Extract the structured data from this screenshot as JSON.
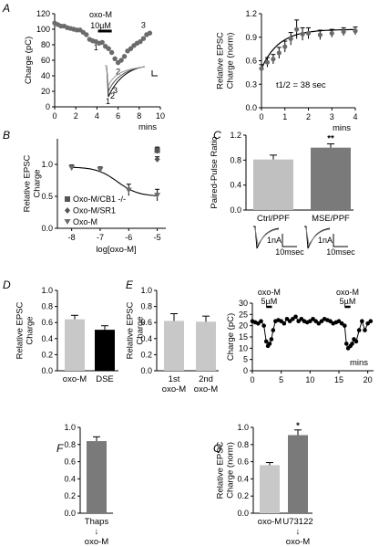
{
  "chart_data": [
    {
      "panel": "A",
      "type": "scatter",
      "ylabel": "Charge (pC)",
      "xlabel": "mins",
      "xlim": [
        0,
        10
      ],
      "ylim": [
        0,
        120
      ],
      "xticks": [
        "0",
        "2",
        "4",
        "6",
        "8",
        "10"
      ],
      "yticks": [
        "0",
        "20",
        "40",
        "60",
        "80",
        "100",
        "120"
      ],
      "drug_bar": {
        "label1": "oxo-M",
        "label2": "10µM",
        "x": [
          4.1,
          5.4
        ]
      },
      "markers": [
        "1",
        "2",
        "3"
      ],
      "trace_labels": [
        "1",
        "2",
        "3"
      ],
      "x": [
        0,
        0.3,
        0.6,
        0.9,
        1.2,
        1.5,
        1.8,
        2.1,
        2.4,
        2.7,
        3.0,
        3.3,
        3.6,
        3.9,
        4.2,
        4.5,
        4.8,
        5.1,
        5.4,
        5.7,
        6.0,
        6.3,
        6.6,
        6.9,
        7.2,
        7.5,
        7.8,
        8.1,
        8.4,
        8.7,
        9.0
      ],
      "y": [
        108,
        106,
        104,
        104,
        102,
        101,
        100,
        99,
        99,
        96,
        93,
        87,
        85,
        84,
        82,
        83,
        78,
        75,
        70,
        62,
        57,
        60,
        65,
        72,
        75,
        79,
        82,
        84,
        88,
        93,
        95
      ]
    },
    {
      "panel": "A-right",
      "type": "line",
      "ylabel": "Relative EPSC Charge (norm)",
      "xlabel": "mins",
      "xlim": [
        0,
        4
      ],
      "ylim": [
        0.0,
        1.2
      ],
      "xticks": [
        "0",
        "1",
        "2",
        "3",
        "4"
      ],
      "yticks": [
        "0.0",
        "0.3",
        "0.6",
        "0.9",
        "1.2"
      ],
      "x": [
        0,
        0.25,
        0.5,
        0.75,
        1.0,
        1.25,
        1.5,
        1.75,
        2.0,
        2.5,
        3.0,
        3.5,
        4.0
      ],
      "y": [
        0.5,
        0.58,
        0.62,
        0.7,
        0.78,
        0.88,
        1.0,
        0.94,
        0.95,
        0.93,
        0.95,
        0.97,
        0.98
      ],
      "err": [
        0.05,
        0.06,
        0.06,
        0.07,
        0.07,
        0.08,
        0.12,
        0.08,
        0.07,
        0.06,
        0.05,
        0.05,
        0.05
      ],
      "annotation": "t1/2 = 38 sec"
    },
    {
      "panel": "B",
      "type": "scatter",
      "ylabel": "Relative EPSC Charge",
      "xlabel": "log[oxo-M]",
      "xlim": [
        -8.5,
        -4.7
      ],
      "ylim": [
        0,
        1.4
      ],
      "xticks": [
        "-8",
        "-7",
        "-6",
        "-5"
      ],
      "yticks": [
        "0.0",
        "0.5",
        "1.0"
      ],
      "legend": [
        "Oxo-M/CB1 -/-",
        "Oxo-M/SR1",
        "Oxo-M"
      ],
      "x": [
        -8,
        -7,
        -6,
        -5
      ],
      "y": [
        0.95,
        0.92,
        0.6,
        0.52
      ],
      "err": [
        0.04,
        0.04,
        0.09,
        0.09
      ],
      "cb1": {
        "x": -5,
        "y": 1.22,
        "err": 0.05
      },
      "sr1": {
        "x": -5,
        "y": 1.08,
        "err": 0.04
      }
    },
    {
      "panel": "C",
      "type": "bar",
      "ylabel": "Paired-Pulse Ratio",
      "ylim": [
        0,
        1.2
      ],
      "yticks": [
        "0.0",
        "0.4",
        "0.8",
        "1.2"
      ],
      "categories": [
        "Ctrl/PPF",
        "MSE/PPF"
      ],
      "values": [
        0.81,
        1.0
      ],
      "err": [
        0.07,
        0.06
      ],
      "colors": [
        "#c0c0c0",
        "#7a7a7a"
      ],
      "significance": "**",
      "scales": [
        {
          "amp": "1nA",
          "time": "10msec"
        },
        {
          "amp": "1nA",
          "time": "10msec"
        }
      ]
    },
    {
      "panel": "D",
      "type": "bar",
      "ylabel": "Relative EPSC Charge",
      "ylim": [
        0,
        1.0
      ],
      "yticks": [
        "0.0",
        "0.2",
        "0.4",
        "0.6",
        "0.8",
        "1.0"
      ],
      "categories": [
        "oxo-M",
        "DSE"
      ],
      "values": [
        0.64,
        0.51
      ],
      "err": [
        0.05,
        0.05
      ],
      "colors": [
        "#c8c8c8",
        "#000000"
      ]
    },
    {
      "panel": "E",
      "type": "bar",
      "ylabel": "Relative EPSC Charge",
      "ylim": [
        0,
        1.0
      ],
      "yticks": [
        "0.0",
        "0.2",
        "0.4",
        "0.6",
        "0.8",
        "1.0"
      ],
      "categories": [
        [
          "1st",
          "oxo-M"
        ],
        [
          "2nd",
          "oxo-M"
        ]
      ],
      "values": [
        0.62,
        0.61
      ],
      "err": [
        0.09,
        0.07
      ],
      "colors": [
        "#c8c8c8",
        "#c8c8c8"
      ]
    },
    {
      "panel": "E-right",
      "type": "line",
      "ylabel": "Charge (pC)",
      "xlabel": "mins",
      "xlim": [
        0,
        21
      ],
      "ylim": [
        0,
        30
      ],
      "xticks": [
        "0",
        "5",
        "10",
        "15",
        "20"
      ],
      "yticks": [
        "0",
        "5",
        "10",
        "15",
        "20",
        "25",
        "30"
      ],
      "drug_bars": [
        {
          "label1": "oxo-M",
          "label2": "5µM",
          "x": [
            2.4,
            3.4
          ]
        },
        {
          "label1": "oxo-M",
          "label2": "5µM",
          "x": [
            16.0,
            17.0
          ]
        }
      ],
      "x": [
        0,
        0.5,
        1.0,
        1.5,
        2.0,
        2.4,
        2.7,
        3.0,
        3.3,
        3.6,
        4.0,
        4.5,
        5.0,
        5.5,
        6.0,
        6.5,
        7.0,
        7.5,
        8.0,
        8.5,
        9.0,
        9.5,
        10.0,
        10.5,
        11.0,
        11.5,
        12.0,
        12.5,
        13.0,
        13.5,
        14.0,
        14.5,
        15.0,
        15.5,
        16.0,
        16.3,
        16.6,
        17.0,
        17.3,
        17.6,
        18.0,
        18.5,
        19.0,
        19.5,
        20.0,
        20.5
      ],
      "y": [
        22,
        21.5,
        21,
        22,
        20,
        13,
        11,
        12,
        14,
        18,
        22,
        22.5,
        22,
        21,
        23,
        22,
        23,
        24,
        22,
        23,
        22,
        21.5,
        22,
        23,
        22,
        21,
        22,
        23,
        22.5,
        22,
        21,
        21.5,
        22,
        21,
        20,
        12,
        10,
        11,
        12,
        14,
        13,
        18,
        22,
        18,
        21,
        22
      ]
    },
    {
      "panel": "F",
      "type": "bar",
      "ylim": [
        0,
        1.0
      ],
      "yticks": [
        "0.0",
        "0.2",
        "0.4",
        "0.6",
        "0.8",
        "1.0"
      ],
      "categories": [
        [
          "Thaps",
          "↓",
          "oxo-M"
        ]
      ],
      "values": [
        0.84
      ],
      "err": [
        0.05
      ],
      "colors": [
        "#7a7a7a"
      ]
    },
    {
      "panel": "G",
      "type": "bar",
      "ylabel": "Relative EPSC Charge (norm)",
      "ylim": [
        0,
        1.0
      ],
      "yticks": [
        "0.0",
        "0.2",
        "0.4",
        "0.6",
        "0.8",
        "1.0"
      ],
      "categories": [
        [
          "oxo-M"
        ],
        [
          "U73122",
          "↓",
          "oxo-M"
        ]
      ],
      "values": [
        0.56,
        0.91
      ],
      "err": [
        0.03,
        0.06
      ],
      "colors": [
        "#c8c8c8",
        "#7a7a7a"
      ],
      "significance": "*"
    }
  ]
}
